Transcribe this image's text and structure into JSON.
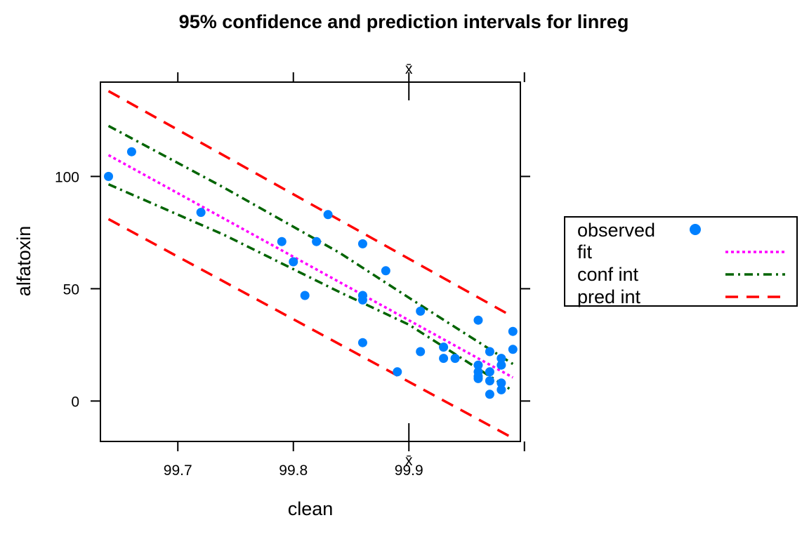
{
  "chart_data": {
    "type": "scatter",
    "title": "95% confidence and prediction intervals for linreg",
    "xlabel": "clean",
    "ylabel": "alfatoxin",
    "xlim": [
      99.633,
      99.9965
    ],
    "ylim": [
      -18,
      142
    ],
    "x_ticks": [
      99.7,
      99.8,
      99.9
    ],
    "x_tick_labels": [
      "99.7",
      "99.8",
      "99.9"
    ],
    "y_ticks": [
      0,
      50,
      100
    ],
    "y_tick_labels": [
      "0",
      "50",
      "100"
    ],
    "x_mean": 99.9,
    "x_mean_label": "x̄",
    "line_range": [
      99.64,
      99.99
    ],
    "grid": false,
    "legend_position": "right",
    "legend": [
      {
        "label": "observed",
        "style": "point",
        "color": "#0080ff"
      },
      {
        "label": "fit",
        "style": "dotted",
        "color": "#ff00ff"
      },
      {
        "label": "conf int",
        "style": "dotdash",
        "color": "#006400"
      },
      {
        "label": "pred int",
        "style": "dashed",
        "color": "#ff0000"
      }
    ],
    "observed": {
      "x": [
        99.64,
        99.66,
        99.72,
        99.79,
        99.8,
        99.81,
        99.82,
        99.83,
        99.86,
        99.86,
        99.86,
        99.86,
        99.88,
        99.89,
        99.91,
        99.91,
        99.93,
        99.93,
        99.94,
        99.96,
        99.96,
        99.96,
        99.96,
        99.96,
        99.97,
        99.97,
        99.97,
        99.97,
        99.98,
        99.98,
        99.98,
        99.98,
        99.99,
        99.99
      ],
      "y": [
        100,
        111,
        84,
        71,
        62,
        47,
        71,
        83,
        70,
        47,
        45,
        26,
        58,
        13,
        40,
        22,
        24,
        19,
        19,
        36,
        16,
        13,
        11,
        10,
        22,
        13,
        9,
        3,
        19,
        16,
        8,
        5,
        31,
        23
      ]
    },
    "fit": {
      "x": [
        99.64,
        99.99
      ],
      "y": [
        109.5,
        10.5
      ]
    },
    "conf_int": {
      "lower": {
        "x": [
          99.64,
          99.74,
          99.84,
          99.9,
          99.99
        ],
        "y": [
          96.5,
          74,
          48.5,
          34,
          4.5
        ]
      },
      "upper": {
        "x": [
          99.64,
          99.74,
          99.84,
          99.9,
          99.99
        ],
        "y": [
          122.5,
          95,
          66,
          46,
          16.5
        ]
      }
    },
    "pred_int": {
      "lower": {
        "x": [
          99.64,
          99.99
        ],
        "y": [
          81,
          -16.5
        ]
      },
      "upper": {
        "x": [
          99.64,
          99.99
        ],
        "y": [
          138,
          37.5
        ]
      }
    }
  }
}
